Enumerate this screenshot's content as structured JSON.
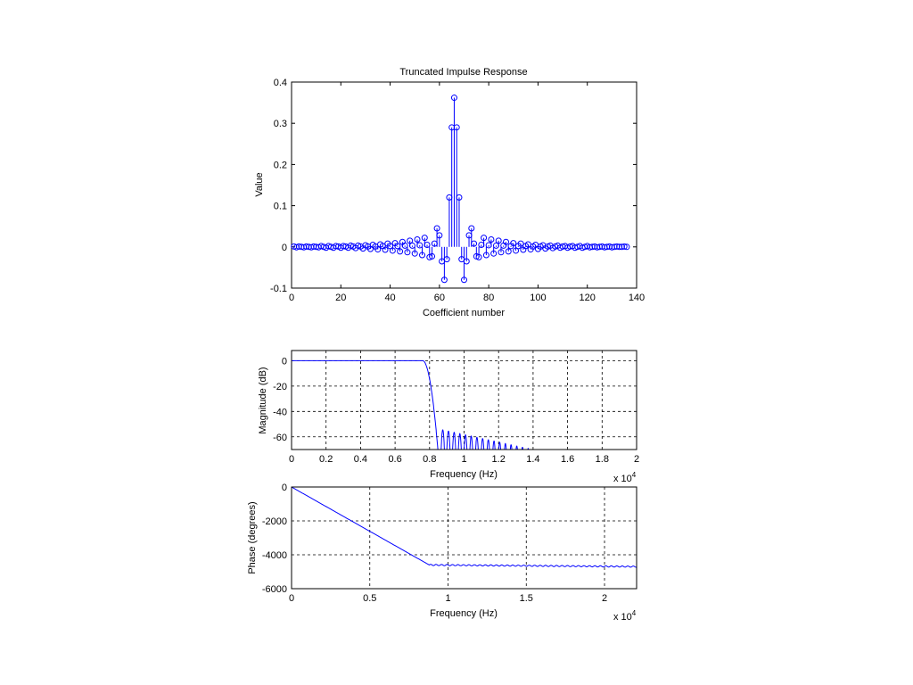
{
  "chart_data": [
    {
      "type": "stem",
      "title": "Truncated Impulse Response",
      "xlabel": "Coefficient number",
      "ylabel": "Value",
      "xlim": [
        0,
        140
      ],
      "ylim": [
        -0.1,
        0.4
      ],
      "xticks": [
        "0",
        "20",
        "40",
        "60",
        "80",
        "100",
        "120",
        "140"
      ],
      "yticks": [
        "-0.1",
        "0",
        "0.1",
        "0.2",
        "0.3",
        "0.4"
      ],
      "grid": false,
      "color": "#0000ff",
      "marker": "circle",
      "x_start": 1,
      "values": [
        0.001,
        -0.001,
        0.001,
        0,
        -0.001,
        0.001,
        0,
        -0.001,
        0.001,
        0,
        -0.001,
        0.002,
        0,
        -0.002,
        0.002,
        0,
        -0.002,
        0.002,
        0.001,
        -0.002,
        0.002,
        0.001,
        -0.002,
        0.003,
        0.001,
        -0.003,
        0.003,
        0.001,
        -0.004,
        0.004,
        0.001,
        -0.005,
        0.005,
        0.001,
        -0.006,
        0.006,
        0.002,
        -0.007,
        0.008,
        0.002,
        -0.009,
        0.009,
        0.002,
        -0.011,
        0.012,
        0.003,
        -0.013,
        0.015,
        0.003,
        -0.016,
        0.018,
        0.004,
        -0.02,
        0.022,
        0.005,
        -0.025,
        -0.023,
        0.008,
        0.045,
        0.028,
        -0.035,
        -0.08,
        -0.03,
        0.12,
        0.29,
        0.362,
        0.29,
        0.12,
        -0.03,
        -0.08,
        -0.035,
        0.028,
        0.045,
        0.008,
        -0.023,
        -0.025,
        0.005,
        0.022,
        -0.02,
        0.004,
        0.018,
        -0.016,
        0.003,
        0.015,
        -0.013,
        0.003,
        0.012,
        -0.011,
        0.002,
        0.009,
        -0.009,
        0.002,
        0.008,
        -0.007,
        0.002,
        0.006,
        -0.006,
        0.001,
        0.005,
        -0.005,
        0.001,
        0.004,
        -0.004,
        0.001,
        0.003,
        -0.003,
        0.001,
        0.003,
        -0.002,
        0.001,
        0.002,
        -0.002,
        0.001,
        0.002,
        -0.002,
        0,
        0.002,
        -0.002,
        0,
        0.002,
        -0.001,
        0,
        0.001,
        -0.001,
        0,
        0.001,
        -0.001,
        0,
        0.001,
        -0.001,
        0,
        0.001,
        0,
        0,
        0.001,
        0
      ]
    },
    {
      "type": "line",
      "xlabel": "Frequency (Hz)",
      "ylabel": "Magnitude (dB)",
      "xlim": [
        0,
        20000
      ],
      "ylim": [
        -70,
        8
      ],
      "xticks": [
        "0",
        "0.2",
        "0.4",
        "0.6",
        "0.8",
        "1",
        "1.2",
        "1.4",
        "1.6",
        "1.8",
        "2"
      ],
      "x_multiplier_base": "x 10",
      "x_multiplier_exp": "4",
      "yticks": [
        "0",
        "-20",
        "-40",
        "-60"
      ],
      "grid": true,
      "color": "#0000ff",
      "passband_edge_hz": 7600,
      "stopband_edge_hz": 8600,
      "first_sidelobe_db": -54,
      "sidelobes_end_hz": 14000
    },
    {
      "type": "line",
      "xlabel": "Frequency (Hz)",
      "ylabel": "Phase (degrees)",
      "xlim": [
        0,
        22050
      ],
      "ylim": [
        -6000,
        0
      ],
      "xticks": [
        "0",
        "0.5",
        "1",
        "1.5",
        "2"
      ],
      "x_multiplier_base": "x 10",
      "x_multiplier_exp": "4",
      "yticks": [
        "0",
        "-2000",
        "-4000",
        "-6000"
      ],
      "grid": true,
      "color": "#0000ff",
      "x": [
        0,
        8800,
        22050
      ],
      "y": [
        0,
        -4600,
        -4700
      ]
    }
  ]
}
